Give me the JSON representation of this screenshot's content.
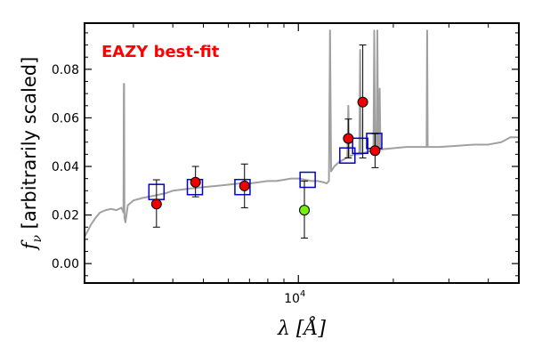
{
  "chart_data": {
    "type": "scatter",
    "title": "",
    "xlabel": "λ [Å]",
    "ylabel": "f_ν [arbitrarily scaled]",
    "ylabel_symbol": "f",
    "ylabel_subscript": "ν",
    "ylabel_text": " [arbitrarily scaled]",
    "xscale": "log",
    "xlim": [
      2100,
      50000
    ],
    "ylim": [
      -0.008,
      0.099
    ],
    "xticks": [
      {
        "value": 10000,
        "base": "10",
        "exp": "4"
      }
    ],
    "yticks": [
      {
        "value": 0.0,
        "label": "0.00"
      },
      {
        "value": 0.02,
        "label": "0.02"
      },
      {
        "value": 0.04,
        "label": "0.04"
      },
      {
        "value": 0.06,
        "label": "0.06"
      },
      {
        "value": 0.08,
        "label": "0.08"
      }
    ],
    "grid": false,
    "annotation": {
      "text": "EAZY best-fit",
      "color": "#ff0000"
    },
    "colors": {
      "template": "#a0a0a0",
      "model_box": "#0000cc",
      "observed": "#ee0000",
      "flagged": "#77ee11",
      "errorbar": "#000000"
    },
    "series": [
      {
        "kind": "line",
        "points": [
          [
            2100,
            0.011
          ],
          [
            2200,
            0.016
          ],
          [
            2280,
            0.019
          ],
          [
            2350,
            0.021
          ],
          [
            2450,
            0.022
          ],
          [
            2550,
            0.0225
          ],
          [
            2650,
            0.022
          ],
          [
            2750,
            0.023
          ],
          [
            2790,
            0.021
          ],
          [
            2798,
            0.074
          ],
          [
            2803,
            0.074
          ],
          [
            2810,
            0.019
          ],
          [
            2830,
            0.017
          ],
          [
            2880,
            0.024
          ],
          [
            3000,
            0.026
          ],
          [
            3200,
            0.027
          ],
          [
            3500,
            0.028
          ],
          [
            3800,
            0.029
          ],
          [
            4000,
            0.03
          ],
          [
            4300,
            0.0305
          ],
          [
            4600,
            0.031
          ],
          [
            5000,
            0.0315
          ],
          [
            5500,
            0.032
          ],
          [
            6000,
            0.0325
          ],
          [
            6500,
            0.033
          ],
          [
            7000,
            0.033
          ],
          [
            7500,
            0.0335
          ],
          [
            8000,
            0.034
          ],
          [
            8500,
            0.034
          ],
          [
            9000,
            0.0345
          ],
          [
            9500,
            0.035
          ],
          [
            10000,
            0.035
          ],
          [
            10500,
            0.0345
          ],
          [
            11000,
            0.034
          ],
          [
            11500,
            0.034
          ],
          [
            12000,
            0.0335
          ],
          [
            12300,
            0.033
          ],
          [
            12500,
            0.034
          ],
          [
            12600,
            0.096
          ],
          [
            12700,
            0.038
          ],
          [
            13000,
            0.04
          ],
          [
            13500,
            0.042
          ],
          [
            14000,
            0.043
          ],
          [
            14300,
            0.044
          ],
          [
            14400,
            0.065
          ],
          [
            14500,
            0.044
          ],
          [
            15000,
            0.045
          ],
          [
            15600,
            0.045
          ],
          [
            15700,
            0.088
          ],
          [
            15800,
            0.045
          ],
          [
            16500,
            0.046
          ],
          [
            17300,
            0.0465
          ],
          [
            17400,
            0.096
          ],
          [
            17500,
            0.047
          ],
          [
            17700,
            0.047
          ],
          [
            17800,
            0.096
          ],
          [
            17900,
            0.047
          ],
          [
            18000,
            0.047
          ],
          [
            18100,
            0.072
          ],
          [
            18200,
            0.047
          ],
          [
            20000,
            0.0475
          ],
          [
            22000,
            0.048
          ],
          [
            24000,
            0.048
          ],
          [
            25500,
            0.048
          ],
          [
            25600,
            0.096
          ],
          [
            25700,
            0.048
          ],
          [
            28000,
            0.048
          ],
          [
            32000,
            0.0485
          ],
          [
            36000,
            0.049
          ],
          [
            40000,
            0.049
          ],
          [
            44000,
            0.05
          ],
          [
            47000,
            0.052
          ],
          [
            50000,
            0.052
          ]
        ]
      },
      {
        "kind": "boxes",
        "points": [
          [
            3550,
            0.0295
          ],
          [
            4700,
            0.0315
          ],
          [
            6650,
            0.0315
          ],
          [
            10700,
            0.0345
          ],
          [
            14300,
            0.0445
          ],
          [
            15700,
            0.0485
          ],
          [
            17400,
            0.0505
          ]
        ]
      },
      {
        "kind": "points",
        "points": [
          {
            "x": 3550,
            "y": 0.0245,
            "lo": 0.015,
            "hi": 0.0345,
            "flag": false
          },
          {
            "x": 4720,
            "y": 0.0335,
            "lo": 0.0275,
            "hi": 0.04,
            "flag": false
          },
          {
            "x": 6750,
            "y": 0.032,
            "lo": 0.023,
            "hi": 0.041,
            "flag": false
          },
          {
            "x": 10450,
            "y": 0.022,
            "lo": 0.0105,
            "hi": 0.034,
            "flag": true
          },
          {
            "x": 14400,
            "y": 0.0515,
            "lo": 0.0435,
            "hi": 0.0595,
            "flag": false
          },
          {
            "x": 16000,
            "y": 0.0665,
            "lo": 0.0435,
            "hi": 0.09,
            "flag": false
          },
          {
            "x": 17500,
            "y": 0.0465,
            "lo": 0.0395,
            "hi": 0.0535,
            "flag": false
          }
        ]
      }
    ]
  }
}
